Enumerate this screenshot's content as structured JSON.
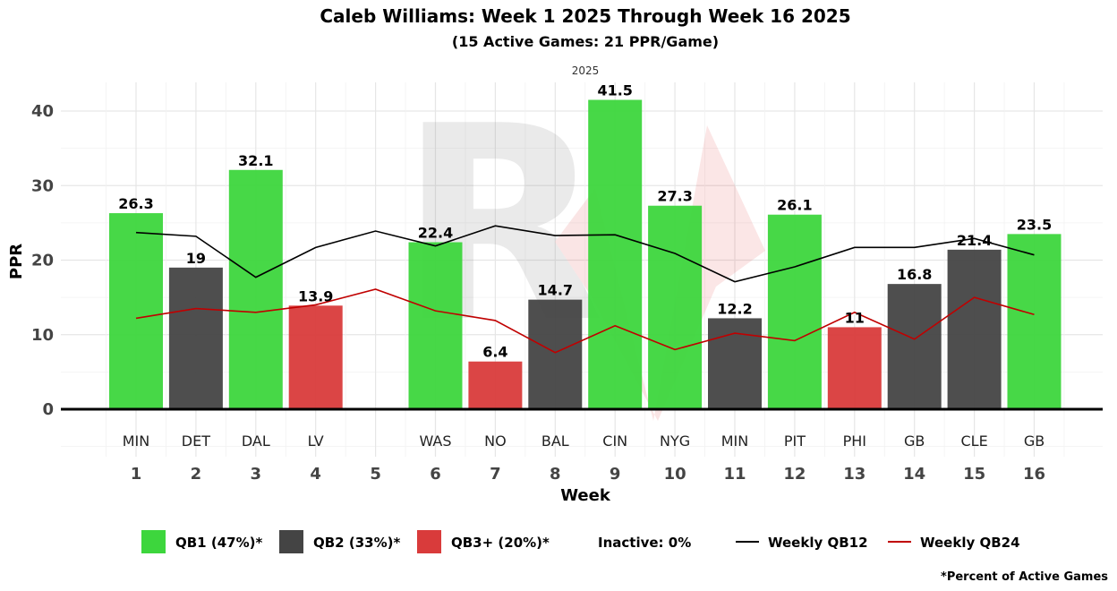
{
  "chart_data": {
    "type": "bar",
    "title": "Caleb Williams: Week 1 2025 Through Week 16 2025",
    "subtitle": "(15 Active Games: 21 PPR/Game)",
    "facet_label": "2025",
    "xlabel": "Week",
    "ylabel": "PPR",
    "ylim": [
      -6,
      44
    ],
    "yticks": [
      0,
      10,
      20,
      30,
      40
    ],
    "weeks": [
      1,
      2,
      3,
      4,
      5,
      6,
      7,
      8,
      9,
      10,
      11,
      12,
      13,
      14,
      15,
      16
    ],
    "opponents": [
      "MIN",
      "DET",
      "DAL",
      "LV",
      "",
      "WAS",
      "NO",
      "BAL",
      "CIN",
      "NYG",
      "MIN",
      "PIT",
      "PHI",
      "GB",
      "CLE",
      "GB"
    ],
    "values": [
      26.3,
      19,
      32.1,
      13.9,
      null,
      22.4,
      6.4,
      14.7,
      41.5,
      27.3,
      12.2,
      26.1,
      11,
      16.8,
      21.4,
      23.5
    ],
    "value_labels": [
      "26.3",
      "19",
      "32.1",
      "13.9",
      "",
      "22.4",
      "6.4",
      "14.7",
      "41.5",
      "27.3",
      "12.2",
      "26.1",
      "11",
      "16.8",
      "21.4",
      "23.5"
    ],
    "tiers": [
      "QB1",
      "QB2",
      "QB1",
      "QB3+",
      null,
      "QB1",
      "QB3+",
      "QB2",
      "QB1",
      "QB1",
      "QB2",
      "QB1",
      "QB3+",
      "QB2",
      "QB2",
      "QB1"
    ],
    "tier_colors": {
      "QB1": "#3dd63d",
      "QB2": "#444444",
      "QB3+": "#d93b3b"
    },
    "series": [
      {
        "name": "Weekly QB12",
        "color": "#000000",
        "values": [
          23.7,
          23.2,
          17.7,
          21.7,
          23.9,
          21.9,
          24.6,
          23.3,
          23.4,
          20.9,
          17.1,
          19.1,
          21.7,
          21.7,
          22.9,
          20.7
        ]
      },
      {
        "name": "Weekly QB24",
        "color": "#c00000",
        "values": [
          12.2,
          13.5,
          13.0,
          14.0,
          16.1,
          13.2,
          11.9,
          7.6,
          11.2,
          8.0,
          10.2,
          9.2,
          13.0,
          9.4,
          15.0,
          12.7
        ]
      }
    ],
    "legend": [
      {
        "label": "QB1 (47%)*",
        "kind": "box",
        "color": "#3dd63d"
      },
      {
        "label": "QB2 (33%)*",
        "kind": "box",
        "color": "#444444"
      },
      {
        "label": "QB3+ (20%)*",
        "kind": "box",
        "color": "#d93b3b"
      },
      {
        "label": "Inactive: 0%",
        "kind": "none"
      },
      {
        "label": "Weekly QB12",
        "kind": "line",
        "color": "#000000"
      },
      {
        "label": "Weekly QB24",
        "kind": "line",
        "color": "#c00000"
      }
    ],
    "legend_position": "bottom",
    "footnote": "*Percent of Active Games",
    "watermark": "R"
  }
}
